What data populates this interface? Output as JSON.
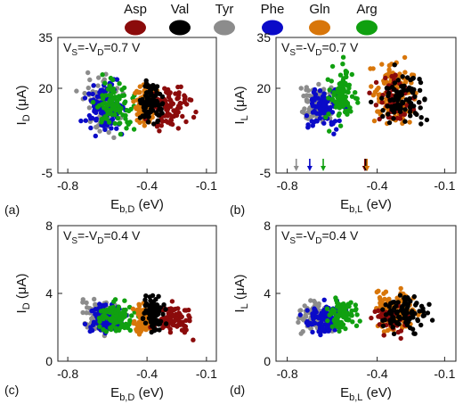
{
  "legend": {
    "entries": [
      {
        "name": "Asp",
        "color": "#8b0b0b"
      },
      {
        "name": "Val",
        "color": "#000000"
      },
      {
        "name": "Tyr",
        "color": "#8c8c8c"
      },
      {
        "name": "Phe",
        "color": "#0a0ac8"
      },
      {
        "name": "Gln",
        "color": "#d8760a"
      },
      {
        "name": "Arg",
        "color": "#10a010"
      }
    ]
  },
  "chart_data": [
    {
      "type": "scatter",
      "panel_label": "(a)",
      "annotation": "V",
      "annotation_sub1": "S",
      "annotation_mid": "=-V",
      "annotation_sub2": "D",
      "annotation_tail": "=0.7 V",
      "xlabel": "E",
      "xlabel_sub": "b,D",
      "xlabel_unit": " (eV)",
      "ylabel": "I",
      "ylabel_sub": "D",
      "ylabel_unit": " (μA)",
      "xlim": [
        -0.85,
        -0.05
      ],
      "ylim": [
        -5,
        35
      ],
      "xticks": [
        "-0.8",
        "-0.4",
        "-0.1"
      ],
      "xtick_values": [
        -0.8,
        -0.4,
        -0.1
      ],
      "yticks": [
        "-5",
        "20",
        "35"
      ],
      "ytick_values": [
        -5,
        20,
        35
      ],
      "series": [
        {
          "name": "Asp",
          "x_range": [
            -0.45,
            -0.12
          ],
          "y_range": [
            5,
            24
          ],
          "n": 90
        },
        {
          "name": "Val",
          "x_range": [
            -0.45,
            -0.3
          ],
          "y_range": [
            5,
            27
          ],
          "n": 90
        },
        {
          "name": "Tyr",
          "x_range": [
            -0.78,
            -0.48
          ],
          "y_range": [
            3,
            28
          ],
          "n": 90
        },
        {
          "name": "Phe",
          "x_range": [
            -0.76,
            -0.45
          ],
          "y_range": [
            3,
            25
          ],
          "n": 90
        },
        {
          "name": "Gln",
          "x_range": [
            -0.5,
            -0.33
          ],
          "y_range": [
            5,
            24
          ],
          "n": 90
        },
        {
          "name": "Arg",
          "x_range": [
            -0.7,
            -0.42
          ],
          "y_range": [
            4,
            26
          ],
          "n": 90
        }
      ]
    },
    {
      "type": "scatter",
      "panel_label": "(b)",
      "annotation": "V",
      "annotation_sub1": "S",
      "annotation_mid": "=-V",
      "annotation_sub2": "D",
      "annotation_tail": "=0.7 V",
      "xlabel": "E",
      "xlabel_sub": "b,L",
      "xlabel_unit": " (eV)",
      "ylabel": "I",
      "ylabel_sub": "L",
      "ylabel_unit": " (μA)",
      "xlim": [
        -0.85,
        -0.05
      ],
      "ylim": [
        -5,
        35
      ],
      "xticks": [
        "-0.8",
        "-0.4",
        "-0.1"
      ],
      "xtick_values": [
        -0.8,
        -0.4,
        -0.1
      ],
      "yticks": [
        "-5",
        "20",
        "35"
      ],
      "ytick_values": [
        -5,
        20,
        35
      ],
      "arrows": [
        {
          "name": "Tyr",
          "x": -0.76
        },
        {
          "name": "Phe",
          "x": -0.7
        },
        {
          "name": "Arg",
          "x": -0.64
        },
        {
          "name": "Asp",
          "x": -0.455
        },
        {
          "name": "Val",
          "x": -0.45
        },
        {
          "name": "Gln",
          "x": -0.445
        }
      ],
      "series": [
        {
          "name": "Asp",
          "x_range": [
            -0.46,
            -0.2
          ],
          "y_range": [
            6,
            28
          ],
          "n": 60
        },
        {
          "name": "Val",
          "x_range": [
            -0.45,
            -0.12
          ],
          "y_range": [
            6,
            28
          ],
          "n": 90
        },
        {
          "name": "Tyr",
          "x_range": [
            -0.78,
            -0.55
          ],
          "y_range": [
            5,
            25
          ],
          "n": 90
        },
        {
          "name": "Phe",
          "x_range": [
            -0.76,
            -0.52
          ],
          "y_range": [
            5,
            24
          ],
          "n": 90
        },
        {
          "name": "Gln",
          "x_range": [
            -0.46,
            -0.18
          ],
          "y_range": [
            5,
            32
          ],
          "n": 140
        },
        {
          "name": "Arg",
          "x_range": [
            -0.66,
            -0.45
          ],
          "y_range": [
            5,
            30
          ],
          "n": 90
        }
      ]
    },
    {
      "type": "scatter",
      "panel_label": "(c)",
      "annotation": "V",
      "annotation_sub1": "S",
      "annotation_mid": "=-V",
      "annotation_sub2": "D",
      "annotation_tail": "=0.4 V",
      "xlabel": "E",
      "xlabel_sub": "b,D",
      "xlabel_unit": " (eV)",
      "ylabel": "I",
      "ylabel_sub": "D",
      "ylabel_unit": " (μA)",
      "xlim": [
        -0.85,
        -0.05
      ],
      "ylim": [
        0,
        8
      ],
      "xticks": [
        "-0.8",
        "-0.4",
        "-0.1"
      ],
      "xtick_values": [
        -0.8,
        -0.4,
        -0.1
      ],
      "yticks": [
        "0",
        "4",
        "8"
      ],
      "ytick_values": [
        0,
        4,
        8
      ],
      "series": [
        {
          "name": "Asp",
          "x_range": [
            -0.42,
            -0.13
          ],
          "y_range": [
            1.2,
            3.8
          ],
          "n": 90
        },
        {
          "name": "Val",
          "x_range": [
            -0.44,
            -0.3
          ],
          "y_range": [
            1.3,
            4.3
          ],
          "n": 90
        },
        {
          "name": "Tyr",
          "x_range": [
            -0.78,
            -0.48
          ],
          "y_range": [
            1.2,
            4.2
          ],
          "n": 90
        },
        {
          "name": "Phe",
          "x_range": [
            -0.76,
            -0.45
          ],
          "y_range": [
            1.2,
            4.0
          ],
          "n": 90
        },
        {
          "name": "Gln",
          "x_range": [
            -0.5,
            -0.33
          ],
          "y_range": [
            1.2,
            3.8
          ],
          "n": 90
        },
        {
          "name": "Arg",
          "x_range": [
            -0.7,
            -0.42
          ],
          "y_range": [
            1.2,
            4.0
          ],
          "n": 90
        }
      ]
    },
    {
      "type": "scatter",
      "panel_label": "(d)",
      "annotation": "V",
      "annotation_sub1": "S",
      "annotation_mid": "=-V",
      "annotation_sub2": "D",
      "annotation_tail": "=0.4 V",
      "xlabel": "E",
      "xlabel_sub": "b,L",
      "xlabel_unit": " (eV)",
      "ylabel": "I",
      "ylabel_sub": "L",
      "ylabel_unit": " (μA)",
      "xlim": [
        -0.85,
        -0.05
      ],
      "ylim": [
        0,
        8
      ],
      "xticks": [
        "-0.8",
        "-0.4",
        "-0.1"
      ],
      "xtick_values": [
        -0.8,
        -0.4,
        -0.1
      ],
      "yticks": [
        "0",
        "4",
        "8"
      ],
      "ytick_values": [
        0,
        4,
        8
      ],
      "series": [
        {
          "name": "Asp",
          "x_range": [
            -0.46,
            -0.2
          ],
          "y_range": [
            1.2,
            3.6
          ],
          "n": 50
        },
        {
          "name": "Val",
          "x_range": [
            -0.42,
            -0.12
          ],
          "y_range": [
            1.2,
            4.6
          ],
          "n": 90
        },
        {
          "name": "Tyr",
          "x_range": [
            -0.78,
            -0.56
          ],
          "y_range": [
            1.2,
            4.0
          ],
          "n": 90
        },
        {
          "name": "Phe",
          "x_range": [
            -0.76,
            -0.52
          ],
          "y_range": [
            1.2,
            3.8
          ],
          "n": 90
        },
        {
          "name": "Gln",
          "x_range": [
            -0.46,
            -0.18
          ],
          "y_range": [
            1.2,
            4.8
          ],
          "n": 140
        },
        {
          "name": "Arg",
          "x_range": [
            -0.66,
            -0.45
          ],
          "y_range": [
            1.2,
            4.4
          ],
          "n": 90
        }
      ]
    }
  ]
}
